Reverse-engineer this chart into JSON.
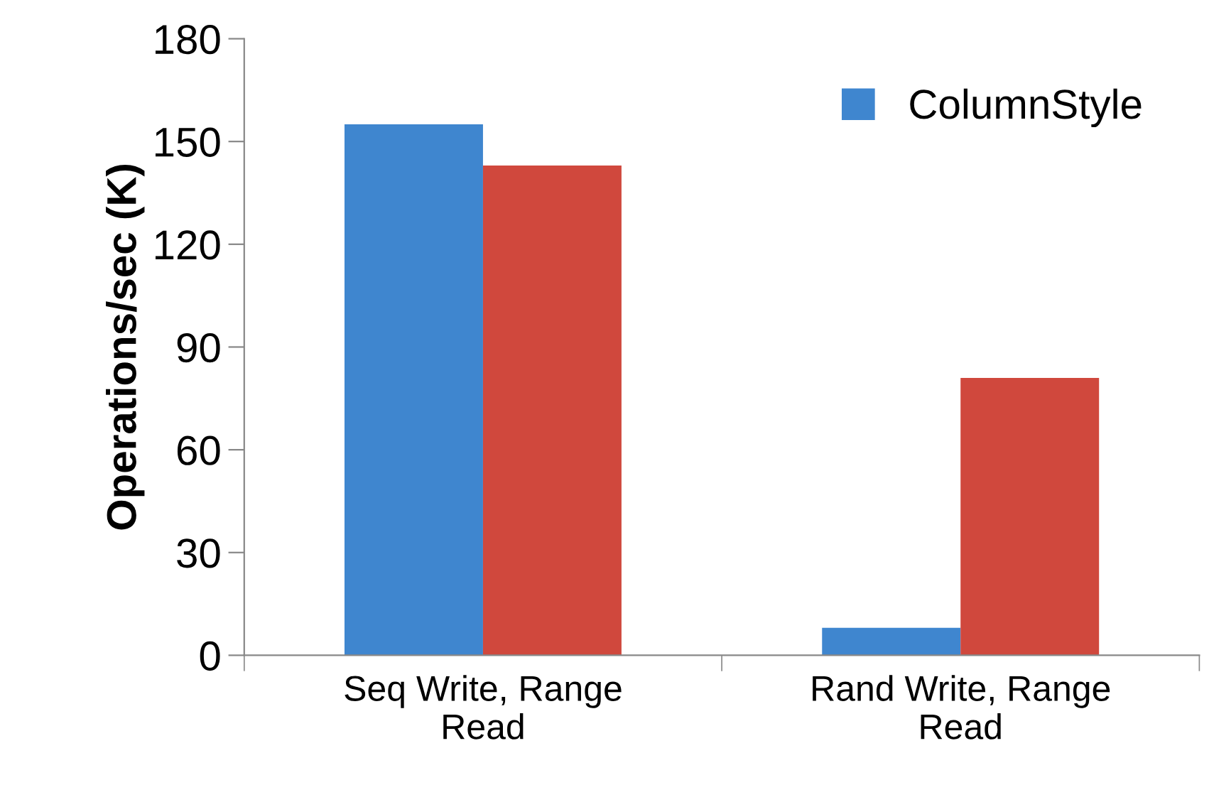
{
  "chart_data": {
    "type": "bar",
    "ylabel": "Operations/sec (K)",
    "categories": [
      "Seq Write, Range Read",
      "Rand Write, Range Read"
    ],
    "series": [
      {
        "name": "ColumnStyle",
        "color": "#3f86cf",
        "values": [
          155,
          8
        ]
      },
      {
        "color": "#d0483d",
        "values": [
          143,
          81
        ]
      }
    ],
    "ylim": [
      0,
      180
    ],
    "yticks": [
      0,
      30,
      60,
      90,
      120,
      150,
      180
    ],
    "grid": false,
    "legend": "top right"
  }
}
